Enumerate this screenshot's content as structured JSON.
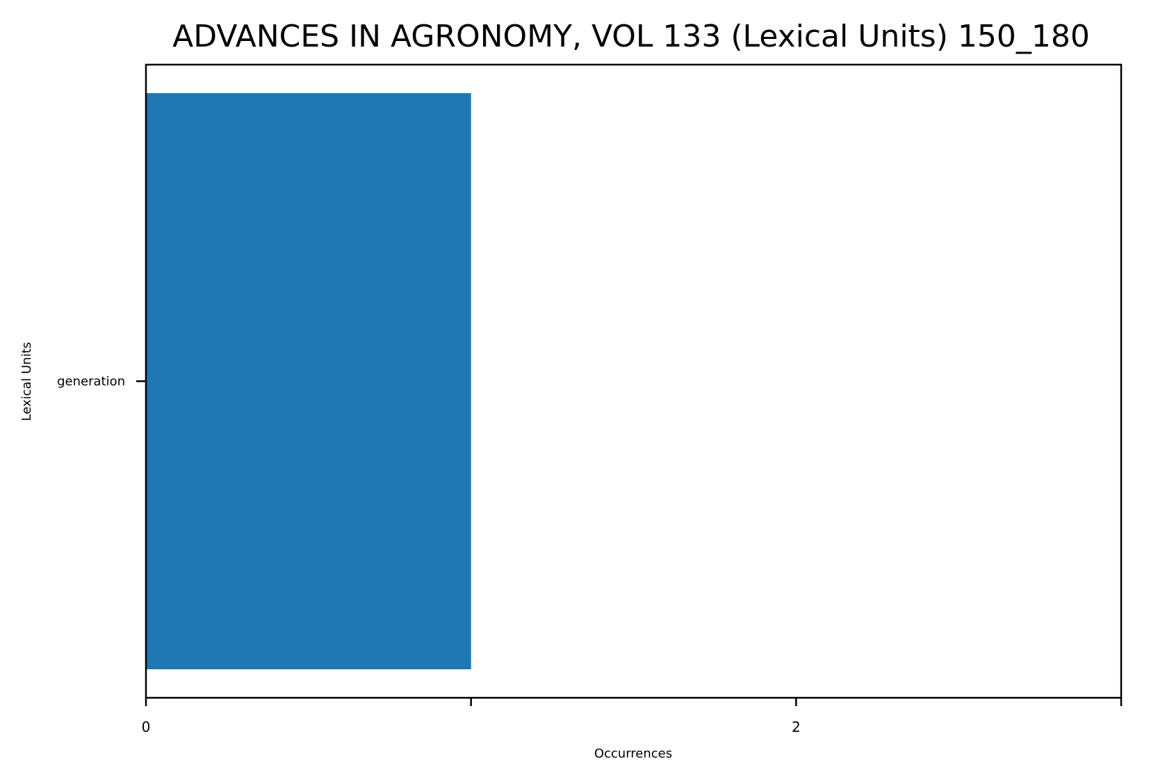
{
  "chart_data": {
    "type": "bar",
    "orientation": "horizontal",
    "title": "ADVANCES IN AGRONOMY, VOL 133 (Lexical Units) 150_180",
    "xlabel": "Occurrences",
    "ylabel": "Lexical Units",
    "categories": [
      "generation"
    ],
    "values": [
      1
    ],
    "xlim": [
      0,
      3
    ],
    "x_major_ticks": [
      0,
      2
    ],
    "x_minor_ticks": [
      1,
      3
    ],
    "x_tick_labels": [
      "0",
      "2"
    ],
    "grid": false,
    "legend": "none",
    "bar_color": "#1f77b4"
  }
}
